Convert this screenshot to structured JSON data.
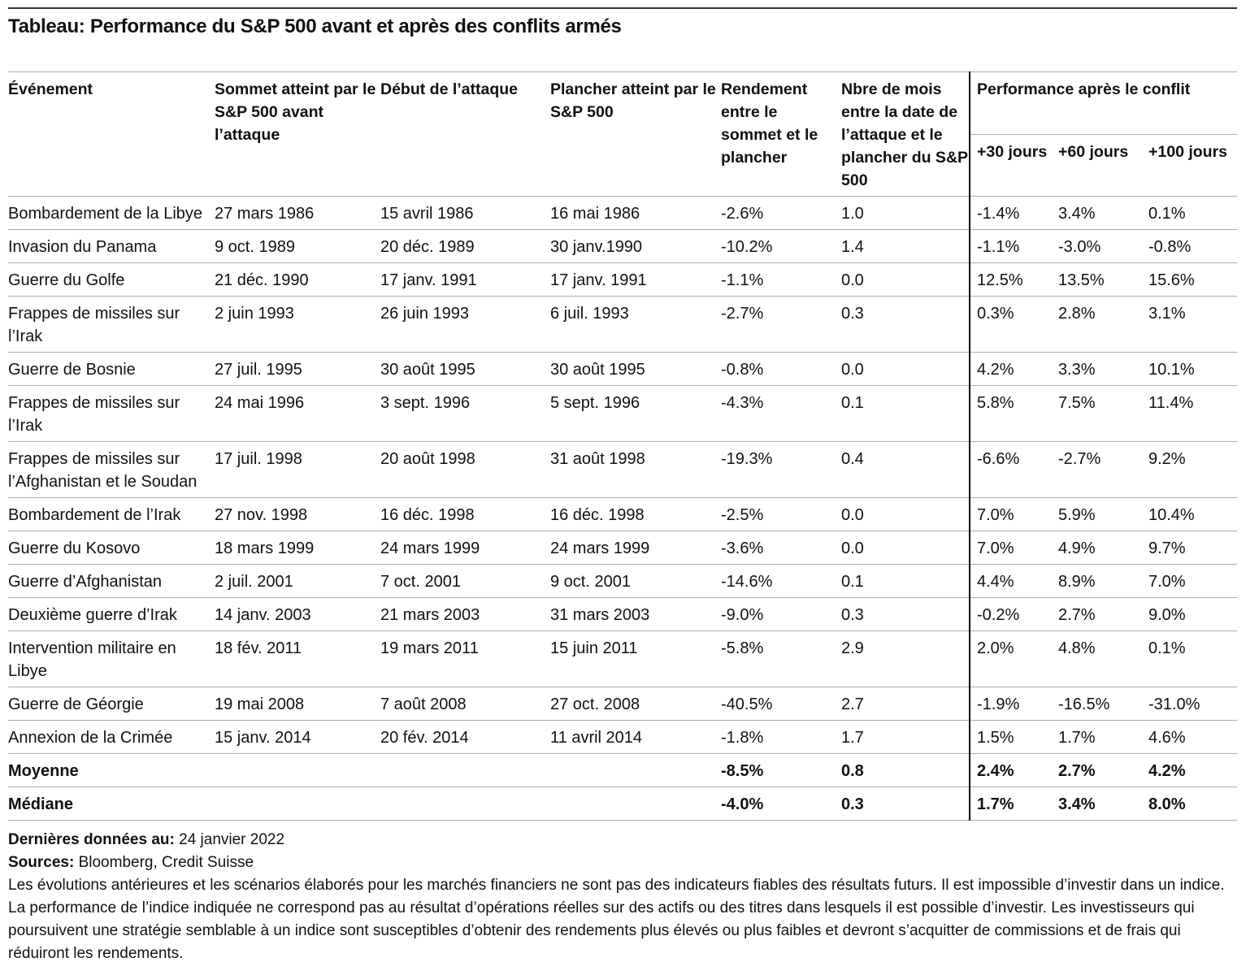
{
  "title": "Tableau: Performance du S&P 500 avant et après des conflits armés",
  "table": {
    "header": {
      "columns": [
        "Événement",
        "Sommet atteint par le S&P 500 avant l’attaque",
        "Début de l’attaque",
        "Plancher atteint par le S&P 500",
        "Rendement entre le sommet et le plancher",
        "Nbre de mois entre la date de l’attaque et le plancher du S&P 500"
      ],
      "group": "Performance après le conflit",
      "subcolumns": [
        "+30 jours",
        "+60 jours",
        "+100 jours"
      ]
    },
    "rows": [
      [
        "Bombardement de la Libye",
        "27 mars 1986",
        "15 avril 1986",
        "16 mai 1986",
        "-2.6%",
        "1.0",
        "-1.4%",
        "3.4%",
        "0.1%"
      ],
      [
        "Invasion du Panama",
        "9 oct. 1989",
        "20 déc. 1989",
        "30 janv.1990",
        "-10.2%",
        "1.4",
        "-1.1%",
        "-3.0%",
        "-0.8%"
      ],
      [
        "Guerre du Golfe",
        "21 déc. 1990",
        "17 janv. 1991",
        "17 janv. 1991",
        "-1.1%",
        "0.0",
        "12.5%",
        "13.5%",
        "15.6%"
      ],
      [
        "Frappes de missiles sur l’Irak",
        "2 juin 1993",
        "26 juin 1993",
        "6 juil. 1993",
        "-2.7%",
        "0.3",
        "0.3%",
        "2.8%",
        "3.1%"
      ],
      [
        "Guerre de Bosnie",
        "27 juil. 1995",
        "30 août 1995",
        "30 août 1995",
        "-0.8%",
        "0.0",
        "4.2%",
        "3.3%",
        "10.1%"
      ],
      [
        "Frappes de missiles sur l’Irak",
        "24 mai 1996",
        "3 sept. 1996",
        "5 sept. 1996",
        "-4.3%",
        "0.1",
        "5.8%",
        "7.5%",
        "11.4%"
      ],
      [
        "Frappes de missiles sur l’Afghanistan et le Soudan",
        "17 juil. 1998",
        "20 août 1998",
        "31 août 1998",
        "-19.3%",
        "0.4",
        "-6.6%",
        "-2.7%",
        "9.2%"
      ],
      [
        "Bombardement de l’Irak",
        "27 nov. 1998",
        "16 déc. 1998",
        "16 déc. 1998",
        "-2.5%",
        "0.0",
        "7.0%",
        "5.9%",
        "10.4%"
      ],
      [
        "Guerre du Kosovo",
        "18 mars 1999",
        "24 mars 1999",
        "24 mars 1999",
        "-3.6%",
        "0.0",
        "7.0%",
        "4.9%",
        "9.7%"
      ],
      [
        "Guerre d’Afghanistan",
        "2 juil. 2001",
        "7 oct. 2001",
        "9 oct. 2001",
        "-14.6%",
        "0.1",
        "4.4%",
        "8.9%",
        "7.0%"
      ],
      [
        "Deuxième guerre d’Irak",
        "14 janv. 2003",
        "21 mars 2003",
        "31 mars 2003",
        "-9.0%",
        "0.3",
        "-0.2%",
        "2.7%",
        "9.0%"
      ],
      [
        "Intervention militaire en Libye",
        "18 fév. 2011",
        "19 mars 2011",
        "15 juin 2011",
        "-5.8%",
        "2.9",
        "2.0%",
        "4.8%",
        "0.1%"
      ],
      [
        "Guerre de Géorgie",
        "19 mai 2008",
        "7 août 2008",
        "27 oct. 2008",
        "-40.5%",
        "2.7",
        "-1.9%",
        "-16.5%",
        "-31.0%"
      ],
      [
        "Annexion de la Crimée",
        "15 janv. 2014",
        "20 fév. 2014",
        "11 avril 2014",
        "-1.8%",
        "1.7",
        "1.5%",
        "1.7%",
        "4.6%"
      ]
    ],
    "summary": [
      [
        "Moyenne",
        "-8.5%",
        "0.8",
        "2.4%",
        "2.7%",
        "4.2%"
      ],
      [
        "Médiane",
        "-4.0%",
        "0.3",
        "1.7%",
        "3.4%",
        "8.0%"
      ]
    ]
  },
  "footer": {
    "date_label": "Dernières données au:",
    "date": "24 janvier 2022",
    "sources_label": "Sources:",
    "sources": "Bloomberg, Credit Suisse",
    "disclaimer": "Les évolutions antérieures et les scénarios élaborés pour les marchés financiers ne sont pas des indicateurs fiables des résultats futurs. Il est impossible d’investir dans un indice. La performance de l’indice indiquée ne correspond pas au résultat d’opérations réelles sur des actifs ou des titres dans lesquels il est possible d’investir. Les investisseurs qui poursuivent une stratégie semblable à un indice sont susceptibles d’obtenir des rendements plus élevés ou plus faibles et devront s’acquitter de commissions et de frais qui réduiront les rendements."
  }
}
